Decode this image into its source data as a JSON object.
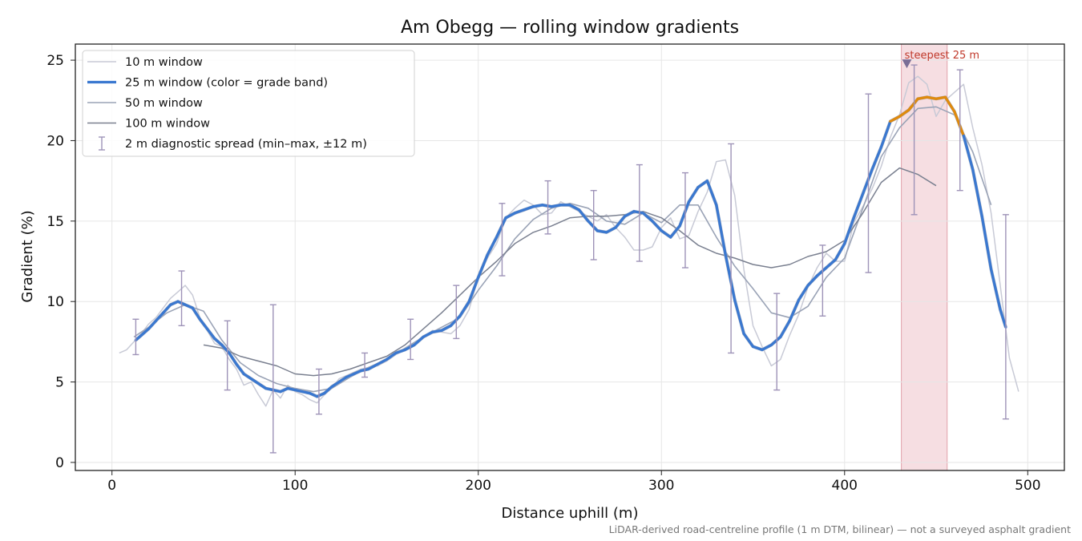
{
  "chart_data": {
    "type": "line",
    "title": "Am Obegg — rolling window gradients",
    "xlabel": "Distance uphill (m)",
    "ylabel": "Gradient (%)",
    "footnote": "LiDAR-derived road-centreline profile (1 m DTM, bilinear) — not a surveyed asphalt gradient",
    "xlim": [
      -20,
      520
    ],
    "ylim": [
      -0.5,
      26
    ],
    "xticks": [
      0,
      100,
      200,
      300,
      400,
      500
    ],
    "yticks": [
      0,
      5,
      10,
      15,
      20,
      25
    ],
    "grid": true,
    "legend_position": "top-left",
    "colors": {
      "w10": "#c8cad6",
      "w25_blue": "#3a78d0",
      "w25_orange": "#e08a0c",
      "w50": "#9aa3b6",
      "w100": "#7a8090",
      "errbar": "#9e93b8",
      "highlight": "#f0c8ce",
      "annotation": "#c0392b"
    },
    "legend": [
      {
        "key": "w10",
        "label": "10 m window"
      },
      {
        "key": "w25",
        "label": "25 m window (color = grade band)"
      },
      {
        "key": "w50",
        "label": "50 m window"
      },
      {
        "key": "w100",
        "label": "100 m window"
      },
      {
        "key": "err",
        "label": "2 m diagnostic spread (min–max, ±12 m)"
      }
    ],
    "highlight_span": {
      "x": [
        431,
        456
      ],
      "label": "steepest 25 m"
    },
    "steepest_marker": {
      "x": 434,
      "y": 24.8
    },
    "orange_threshold": 20,
    "series": [
      {
        "key": "w10",
        "x": [
          4,
          8,
          12,
          16,
          20,
          24,
          28,
          32,
          36,
          40,
          44,
          48,
          52,
          56,
          60,
          64,
          68,
          72,
          76,
          80,
          84,
          88,
          92,
          96,
          100,
          104,
          108,
          112,
          116,
          120,
          124,
          128,
          132,
          136,
          140,
          145,
          150,
          155,
          160,
          165,
          170,
          175,
          180,
          185,
          190,
          195,
          200,
          205,
          210,
          215,
          220,
          225,
          230,
          235,
          240,
          245,
          250,
          255,
          260,
          265,
          270,
          275,
          280,
          285,
          290,
          295,
          300,
          305,
          310,
          315,
          320,
          325,
          330,
          335,
          340,
          345,
          350,
          355,
          360,
          365,
          370,
          375,
          380,
          385,
          390,
          395,
          400,
          405,
          410,
          415,
          420,
          425,
          430,
          435,
          440,
          445,
          450,
          455,
          460,
          465,
          470,
          475,
          480,
          485,
          490,
          495
        ],
        "y": [
          6.8,
          7.0,
          7.5,
          8.0,
          8.6,
          9.0,
          9.6,
          10.2,
          10.6,
          11.0,
          10.4,
          9.0,
          8.2,
          7.4,
          7.2,
          6.4,
          5.8,
          4.8,
          5.0,
          4.2,
          3.5,
          4.5,
          4.0,
          4.8,
          4.4,
          4.2,
          3.9,
          3.7,
          4.2,
          4.6,
          5.2,
          5.4,
          5.6,
          5.8,
          5.9,
          6.0,
          6.3,
          6.7,
          7.0,
          7.3,
          7.8,
          8.2,
          8.1,
          8.0,
          8.5,
          9.5,
          11.5,
          12.7,
          13.6,
          15.2,
          15.8,
          16.3,
          16.0,
          15.4,
          15.5,
          16.2,
          15.9,
          15.6,
          15.3,
          15.0,
          15.4,
          14.6,
          14.0,
          13.2,
          13.2,
          13.4,
          14.6,
          15.2,
          13.9,
          14.1,
          15.6,
          16.8,
          18.7,
          18.8,
          16.6,
          12.0,
          8.5,
          7.2,
          6.0,
          6.4,
          7.9,
          9.2,
          10.9,
          12.1,
          13.0,
          12.5,
          12.5,
          14.9,
          15.9,
          17.0,
          18.4,
          20.2,
          21.6,
          23.6,
          24.0,
          23.5,
          21.5,
          22.5,
          23.0,
          23.5,
          20.8,
          18.5,
          15.5,
          11.0,
          6.5,
          4.4
        ]
      },
      {
        "key": "w25",
        "x": [
          13,
          16,
          20,
          24,
          28,
          32,
          36,
          40,
          44,
          48,
          52,
          56,
          60,
          64,
          68,
          72,
          76,
          80,
          84,
          88,
          92,
          96,
          100,
          104,
          108,
          112,
          116,
          120,
          124,
          128,
          132,
          136,
          140,
          145,
          150,
          155,
          160,
          165,
          170,
          175,
          180,
          185,
          190,
          195,
          200,
          205,
          210,
          215,
          220,
          225,
          230,
          235,
          240,
          245,
          250,
          255,
          260,
          265,
          270,
          275,
          280,
          285,
          290,
          295,
          300,
          305,
          310,
          315,
          320,
          325,
          330,
          335,
          340,
          345,
          350,
          355,
          360,
          365,
          370,
          375,
          380,
          385,
          390,
          395,
          400,
          405,
          410,
          415,
          420,
          425,
          430,
          435,
          440,
          445,
          450,
          455,
          460,
          465,
          470,
          475,
          480,
          485,
          488
        ],
        "y": [
          7.6,
          7.9,
          8.3,
          8.8,
          9.3,
          9.8,
          10.0,
          9.8,
          9.6,
          8.9,
          8.3,
          7.7,
          7.3,
          6.8,
          6.1,
          5.5,
          5.2,
          4.9,
          4.6,
          4.5,
          4.4,
          4.6,
          4.5,
          4.4,
          4.3,
          4.1,
          4.3,
          4.7,
          5.0,
          5.3,
          5.5,
          5.7,
          5.8,
          6.1,
          6.4,
          6.8,
          7.0,
          7.3,
          7.8,
          8.1,
          8.2,
          8.5,
          9.1,
          10.0,
          11.5,
          12.9,
          14.0,
          15.2,
          15.5,
          15.7,
          15.9,
          16.0,
          15.9,
          16.0,
          16.0,
          15.7,
          15.0,
          14.4,
          14.3,
          14.6,
          15.3,
          15.6,
          15.5,
          15.0,
          14.4,
          14.0,
          14.7,
          16.2,
          17.1,
          17.5,
          16.0,
          12.9,
          10.1,
          8.0,
          7.2,
          7.0,
          7.3,
          7.8,
          8.8,
          10.1,
          11.0,
          11.6,
          12.1,
          12.6,
          13.6,
          15.2,
          16.7,
          18.2,
          19.6,
          21.2,
          21.5,
          21.9,
          22.6,
          22.7,
          22.6,
          22.7,
          21.8,
          20.3,
          18.2,
          15.3,
          12.0,
          9.5,
          8.4
        ]
      },
      {
        "key": "w50",
        "x": [
          12,
          20,
          30,
          40,
          50,
          60,
          70,
          80,
          90,
          100,
          110,
          120,
          130,
          140,
          150,
          160,
          170,
          180,
          190,
          200,
          210,
          220,
          230,
          240,
          250,
          260,
          270,
          280,
          290,
          300,
          310,
          320,
          330,
          340,
          350,
          360,
          370,
          380,
          390,
          400,
          410,
          420,
          430,
          440,
          450,
          460,
          470,
          480
        ],
        "y": [
          7.8,
          8.4,
          9.3,
          9.8,
          9.4,
          7.6,
          6.2,
          5.4,
          4.9,
          4.6,
          4.4,
          4.6,
          5.3,
          5.9,
          6.4,
          7.1,
          7.8,
          8.4,
          9.0,
          10.7,
          12.2,
          13.9,
          15.1,
          15.8,
          16.1,
          15.8,
          15.0,
          14.8,
          15.5,
          14.9,
          16.0,
          16.0,
          14.0,
          12.2,
          10.8,
          9.3,
          9.0,
          9.7,
          11.5,
          12.7,
          15.8,
          19.0,
          20.8,
          22.0,
          22.1,
          21.6,
          19.3,
          16.0
        ]
      },
      {
        "key": "w100",
        "x": [
          50,
          60,
          70,
          80,
          90,
          100,
          110,
          120,
          130,
          140,
          150,
          160,
          170,
          180,
          190,
          200,
          210,
          220,
          230,
          240,
          250,
          260,
          270,
          280,
          290,
          300,
          310,
          320,
          330,
          340,
          350,
          360,
          370,
          380,
          390,
          400,
          410,
          420,
          430,
          440,
          450
        ],
        "y": [
          7.3,
          7.1,
          6.6,
          6.3,
          6.0,
          5.5,
          5.4,
          5.5,
          5.8,
          6.2,
          6.6,
          7.3,
          8.3,
          9.3,
          10.4,
          11.5,
          12.5,
          13.6,
          14.3,
          14.7,
          15.2,
          15.3,
          15.3,
          15.4,
          15.6,
          15.2,
          14.4,
          13.5,
          13.0,
          12.7,
          12.3,
          12.1,
          12.3,
          12.8,
          13.1,
          13.8,
          15.5,
          17.4,
          18.3,
          17.9,
          17.2
        ]
      }
    ],
    "error_bars": [
      {
        "x": 13,
        "y": 7.6,
        "lo": 6.7,
        "hi": 8.9
      },
      {
        "x": 38,
        "y": 10.0,
        "lo": 8.5,
        "hi": 11.9
      },
      {
        "x": 63,
        "y": 7.0,
        "lo": 4.5,
        "hi": 8.8
      },
      {
        "x": 88,
        "y": 4.5,
        "lo": 0.6,
        "hi": 9.8
      },
      {
        "x": 113,
        "y": 4.1,
        "lo": 3.0,
        "hi": 5.8
      },
      {
        "x": 138,
        "y": 5.7,
        "lo": 5.3,
        "hi": 6.8
      },
      {
        "x": 163,
        "y": 7.0,
        "lo": 6.4,
        "hi": 8.9
      },
      {
        "x": 188,
        "y": 8.5,
        "lo": 7.7,
        "hi": 11.0
      },
      {
        "x": 213,
        "y": 15.2,
        "lo": 11.6,
        "hi": 16.1
      },
      {
        "x": 238,
        "y": 15.9,
        "lo": 14.2,
        "hi": 17.5
      },
      {
        "x": 263,
        "y": 14.8,
        "lo": 12.6,
        "hi": 16.9
      },
      {
        "x": 288,
        "y": 15.6,
        "lo": 12.5,
        "hi": 18.5
      },
      {
        "x": 313,
        "y": 14.6,
        "lo": 12.1,
        "hi": 18.0
      },
      {
        "x": 338,
        "y": 12.9,
        "lo": 6.8,
        "hi": 19.8
      },
      {
        "x": 363,
        "y": 7.0,
        "lo": 4.5,
        "hi": 10.5
      },
      {
        "x": 388,
        "y": 11.7,
        "lo": 9.1,
        "hi": 13.5
      },
      {
        "x": 413,
        "y": 16.7,
        "lo": 11.8,
        "hi": 22.9
      },
      {
        "x": 438,
        "y": 22.6,
        "lo": 15.4,
        "hi": 24.7
      },
      {
        "x": 463,
        "y": 21.8,
        "lo": 16.9,
        "hi": 24.4
      },
      {
        "x": 488,
        "y": 8.4,
        "lo": 2.7,
        "hi": 15.4
      }
    ]
  }
}
